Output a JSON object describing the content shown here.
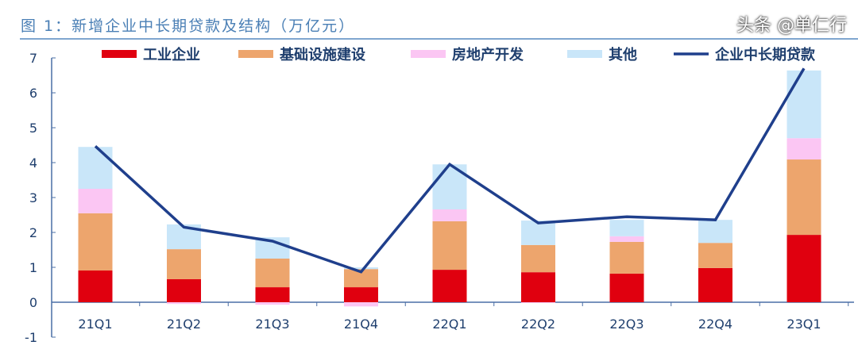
{
  "title": "图 1：新增企业中长期贷款及结构（万亿元）",
  "watermark": "头条 @单仁行",
  "chart_data": {
    "type": "bar",
    "stacked": true,
    "categories": [
      "21Q1",
      "21Q2",
      "21Q3",
      "21Q4",
      "22Q1",
      "22Q2",
      "22Q3",
      "22Q4",
      "23Q1"
    ],
    "ylim": [
      -1,
      7
    ],
    "yticks": [
      -1,
      0,
      1,
      2,
      3,
      4,
      5,
      6,
      7
    ],
    "legend_position": "top",
    "series": [
      {
        "name": "工业企业",
        "type": "bar",
        "color": "#e0000f",
        "values": [
          0.91,
          0.66,
          0.43,
          0.43,
          0.93,
          0.86,
          0.82,
          0.98,
          1.93
        ]
      },
      {
        "name": "基础设施建设",
        "type": "bar",
        "color": "#eda56d",
        "values": [
          1.64,
          0.86,
          0.82,
          0.52,
          1.39,
          0.78,
          0.91,
          0.72,
          2.16
        ]
      },
      {
        "name": "房地产开发",
        "type": "bar",
        "color": "#fbc6f3",
        "values": [
          0.7,
          -0.05,
          -0.07,
          -0.12,
          0.34,
          -0.02,
          0.16,
          0.0,
          0.61
        ]
      },
      {
        "name": "其他",
        "type": "bar",
        "color": "#c9e6f9",
        "values": [
          1.2,
          0.71,
          0.61,
          0.05,
          1.29,
          0.7,
          0.47,
          0.66,
          1.94
        ]
      },
      {
        "name": "企业中长期贷款",
        "type": "line",
        "color": "#1f3f8c",
        "values": [
          4.47,
          2.15,
          1.75,
          0.87,
          3.95,
          2.27,
          2.45,
          2.36,
          6.7
        ]
      }
    ]
  }
}
